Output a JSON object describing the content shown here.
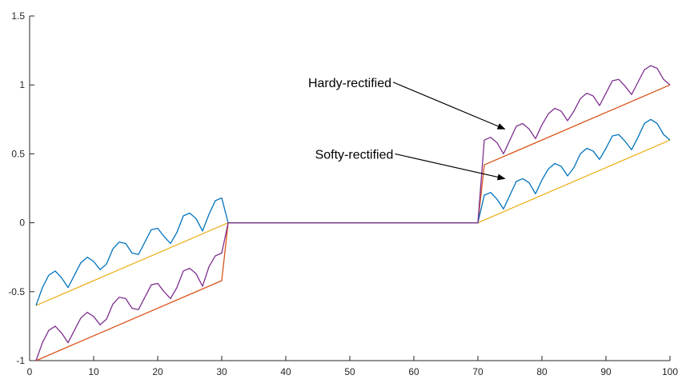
{
  "chart_data": {
    "type": "line",
    "title": "",
    "xlabel": "",
    "ylabel": "",
    "xlim": [
      0,
      100
    ],
    "ylim": [
      -1,
      1.5
    ],
    "xticks": [
      0,
      10,
      20,
      30,
      40,
      50,
      60,
      70,
      80,
      90,
      100
    ],
    "yticks": [
      -1,
      -0.5,
      0,
      0.5,
      1,
      1.5
    ],
    "xtick_labels": [
      "0",
      "10",
      "20",
      "30",
      "40",
      "50",
      "60",
      "70",
      "80",
      "90",
      "100"
    ],
    "ytick_labels": [
      "-1",
      "-0.5",
      "0",
      "0.5",
      "1",
      "1.5"
    ],
    "grid": false,
    "series": [
      {
        "color": "#EDB120",
        "x": [
          1,
          30,
          31,
          70,
          100
        ],
        "y": [
          -0.6,
          -0.02,
          0,
          0,
          0.6
        ]
      },
      {
        "color": "#D95319",
        "x": [
          1,
          30,
          31,
          70,
          71,
          100
        ],
        "y": [
          -1.0,
          -0.42,
          0,
          0,
          0.42,
          1.0
        ]
      },
      {
        "color": "#0072BD",
        "x": [
          1,
          2,
          3,
          4,
          5,
          6,
          7,
          8,
          9,
          10,
          11,
          12,
          13,
          14,
          15,
          16,
          17,
          18,
          19,
          20,
          21,
          22,
          23,
          24,
          25,
          26,
          27,
          28,
          29,
          30,
          31,
          70,
          71,
          72,
          73,
          74,
          75,
          76,
          77,
          78,
          79,
          80,
          81,
          82,
          83,
          84,
          85,
          86,
          87,
          88,
          89,
          90,
          91,
          92,
          93,
          94,
          95,
          96,
          97,
          98,
          99,
          100
        ],
        "y": [
          -0.6,
          -0.47,
          -0.38,
          -0.35,
          -0.4,
          -0.47,
          -0.38,
          -0.29,
          -0.25,
          -0.28,
          -0.34,
          -0.3,
          -0.19,
          -0.14,
          -0.15,
          -0.22,
          -0.23,
          -0.14,
          -0.05,
          -0.04,
          -0.1,
          -0.15,
          -0.07,
          0.05,
          0.07,
          0.03,
          -0.06,
          0.06,
          0.16,
          0.18,
          0.0,
          0.0,
          0.2,
          0.22,
          0.17,
          0.1,
          0.2,
          0.3,
          0.32,
          0.29,
          0.21,
          0.31,
          0.39,
          0.43,
          0.41,
          0.34,
          0.4,
          0.5,
          0.54,
          0.52,
          0.46,
          0.54,
          0.63,
          0.64,
          0.59,
          0.53,
          0.62,
          0.72,
          0.75,
          0.72,
          0.64,
          0.6
        ]
      },
      {
        "color": "#7E2F8E",
        "x": [
          1,
          2,
          3,
          4,
          5,
          6,
          7,
          8,
          9,
          10,
          11,
          12,
          13,
          14,
          15,
          16,
          17,
          18,
          19,
          20,
          21,
          22,
          23,
          24,
          25,
          26,
          27,
          28,
          29,
          30,
          31,
          70,
          71,
          72,
          73,
          74,
          75,
          76,
          77,
          78,
          79,
          80,
          81,
          82,
          83,
          84,
          85,
          86,
          87,
          88,
          89,
          90,
          91,
          92,
          93,
          94,
          95,
          96,
          97,
          98,
          99,
          100
        ],
        "y": [
          -1.0,
          -0.87,
          -0.78,
          -0.75,
          -0.8,
          -0.87,
          -0.78,
          -0.69,
          -0.65,
          -0.68,
          -0.74,
          -0.7,
          -0.59,
          -0.54,
          -0.55,
          -0.62,
          -0.63,
          -0.54,
          -0.45,
          -0.44,
          -0.5,
          -0.55,
          -0.47,
          -0.35,
          -0.33,
          -0.37,
          -0.46,
          -0.32,
          -0.24,
          -0.22,
          0.0,
          0.0,
          0.6,
          0.62,
          0.58,
          0.5,
          0.6,
          0.7,
          0.72,
          0.68,
          0.61,
          0.71,
          0.79,
          0.83,
          0.81,
          0.74,
          0.81,
          0.9,
          0.94,
          0.92,
          0.85,
          0.94,
          1.03,
          1.04,
          0.99,
          0.93,
          1.02,
          1.11,
          1.14,
          1.12,
          1.04,
          1.0
        ]
      }
    ],
    "annotations": [
      {
        "text": "Hardy-rectified",
        "anchor": [
          56.5,
          1.02
        ],
        "target": [
          74.2,
          0.68
        ]
      },
      {
        "text": "Softy-rectified",
        "anchor": [
          56.8,
          0.5
        ],
        "target": [
          74.2,
          0.32
        ]
      }
    ]
  }
}
